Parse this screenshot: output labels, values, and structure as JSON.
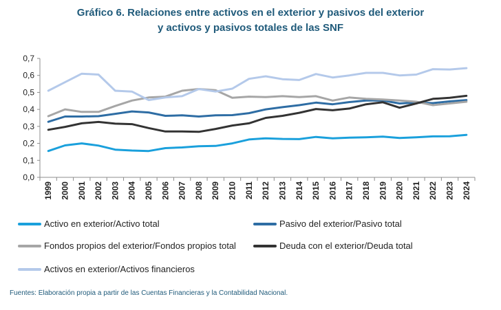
{
  "title_line1": "Gráfico 6. Relaciones entre activos en el exterior y pasivos del exterior",
  "title_line2": "y activos y pasivos totales de las SNF",
  "source": "Fuentes: Elaboración propia a partir de las Cuentas Financieras y la Contabilidad Nacional.",
  "chart_data": {
    "type": "line",
    "title": "Gráfico 6. Relaciones entre activos en el exterior y pasivos del exterior y activos y pasivos totales de las SNF",
    "xlabel": "",
    "ylabel": "",
    "ylim": [
      0,
      0.7
    ],
    "yticks": [
      "0,0",
      "0,1",
      "0,2",
      "0,3",
      "0,4",
      "0,5",
      "0,6",
      "0,7"
    ],
    "grid": false,
    "legend_position": "bottom",
    "x": [
      "1999",
      "2000",
      "2001",
      "2002",
      "2003",
      "2004",
      "2005",
      "2006",
      "2007",
      "2008",
      "2009",
      "2010",
      "2011",
      "2012",
      "2013",
      "2014",
      "2015",
      "2016",
      "2017",
      "2018",
      "2019",
      "2020",
      "2021",
      "2022",
      "2023",
      "2024"
    ],
    "series": [
      {
        "name": "Activo en exterior/Activo total",
        "color": "#1aa0dc",
        "values": [
          0.155,
          0.188,
          0.2,
          0.187,
          0.163,
          0.158,
          0.155,
          0.172,
          0.176,
          0.183,
          0.185,
          0.2,
          0.223,
          0.23,
          0.226,
          0.225,
          0.238,
          0.23,
          0.234,
          0.236,
          0.24,
          0.232,
          0.236,
          0.241,
          0.242,
          0.25
        ]
      },
      {
        "name": "Pasivo del exterior/Pasivo total",
        "color": "#2e6da4",
        "values": [
          0.327,
          0.358,
          0.358,
          0.36,
          0.374,
          0.388,
          0.382,
          0.362,
          0.365,
          0.358,
          0.365,
          0.366,
          0.378,
          0.4,
          0.413,
          0.425,
          0.44,
          0.43,
          0.443,
          0.452,
          0.452,
          0.435,
          0.44,
          0.437,
          0.447,
          0.455
        ]
      },
      {
        "name": "Fondos propios del exterior/Fondos propios total",
        "color": "#a6a6a6",
        "values": [
          0.36,
          0.4,
          0.385,
          0.385,
          0.42,
          0.452,
          0.47,
          0.475,
          0.51,
          0.52,
          0.513,
          0.468,
          0.475,
          0.472,
          0.478,
          0.472,
          0.478,
          0.452,
          0.47,
          0.462,
          0.458,
          0.452,
          0.445,
          0.425,
          0.435,
          0.445
        ]
      },
      {
        "name": "Deuda con el exterior/Deuda total",
        "color": "#333333",
        "values": [
          0.28,
          0.297,
          0.318,
          0.326,
          0.316,
          0.313,
          0.29,
          0.27,
          0.27,
          0.268,
          0.285,
          0.305,
          0.318,
          0.35,
          0.362,
          0.38,
          0.402,
          0.395,
          0.405,
          0.43,
          0.442,
          0.41,
          0.435,
          0.462,
          0.468,
          0.48
        ]
      },
      {
        "name": "Activos en exterior/Activos financieros",
        "color": "#b4c9ea",
        "values": [
          0.51,
          0.56,
          0.61,
          0.605,
          0.51,
          0.505,
          0.455,
          0.47,
          0.478,
          0.52,
          0.505,
          0.522,
          0.58,
          0.595,
          0.578,
          0.573,
          0.608,
          0.588,
          0.6,
          0.615,
          0.615,
          0.6,
          0.605,
          0.637,
          0.635,
          0.643
        ]
      }
    ]
  }
}
